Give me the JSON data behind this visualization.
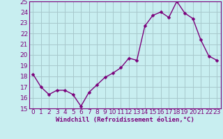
{
  "x": [
    0,
    1,
    2,
    3,
    4,
    5,
    6,
    7,
    8,
    9,
    10,
    11,
    12,
    13,
    14,
    15,
    16,
    17,
    18,
    19,
    20,
    21,
    22,
    23
  ],
  "y": [
    18.2,
    17.0,
    16.3,
    16.7,
    16.7,
    16.3,
    15.2,
    16.5,
    17.2,
    17.9,
    18.3,
    18.8,
    19.7,
    19.5,
    22.7,
    23.7,
    24.0,
    23.5,
    25.0,
    23.9,
    23.4,
    21.4,
    19.9,
    19.5
  ],
  "line_color": "#7B007B",
  "marker_color": "#7B007B",
  "bg_color": "#C8EEF0",
  "grid_color": "#A8C8CC",
  "xlabel": "Windchill (Refroidissement éolien,°C)",
  "ylim": [
    15,
    25
  ],
  "yticks": [
    15,
    16,
    17,
    18,
    19,
    20,
    21,
    22,
    23,
    24,
    25
  ],
  "xticks": [
    0,
    1,
    2,
    3,
    4,
    5,
    6,
    7,
    8,
    9,
    10,
    11,
    12,
    13,
    14,
    15,
    16,
    17,
    18,
    19,
    20,
    21,
    22,
    23
  ],
  "xtick_labels": [
    "0",
    "1",
    "2",
    "3",
    "4",
    "5",
    "6",
    "7",
    "8",
    "9",
    "10",
    "11",
    "12",
    "13",
    "14",
    "15",
    "16",
    "17",
    "18",
    "19",
    "20",
    "21",
    "22",
    "23"
  ],
  "marker_size": 2.5,
  "line_width": 1.0,
  "tick_fontsize": 6.5,
  "xlabel_fontsize": 6.5,
  "tick_color": "#7B007B",
  "spine_color": "#7B007B"
}
